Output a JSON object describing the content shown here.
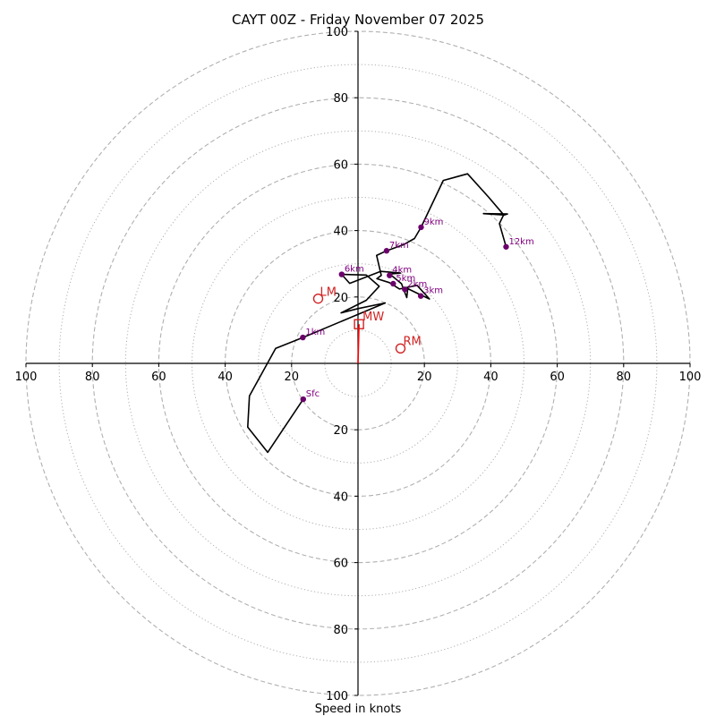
{
  "chart_data": {
    "type": "hodograph",
    "title": "CAYT 00Z - Friday November 07 2025",
    "xlabel": "Speed in knots",
    "units": "knots",
    "max_speed": 100,
    "rings_dashed": [
      20,
      40,
      60,
      80,
      100
    ],
    "rings_dotted": [
      10,
      30,
      50,
      70,
      90
    ],
    "axis_ticks": {
      "x": [
        {
          "value": -100,
          "label": "100"
        },
        {
          "value": -80,
          "label": "80"
        },
        {
          "value": -60,
          "label": "60"
        },
        {
          "value": -40,
          "label": "40"
        },
        {
          "value": -20,
          "label": "20"
        },
        {
          "value": 20,
          "label": "20"
        },
        {
          "value": 40,
          "label": "40"
        },
        {
          "value": 60,
          "label": "60"
        },
        {
          "value": 80,
          "label": "80"
        },
        {
          "value": 100,
          "label": "100"
        }
      ],
      "y": [
        {
          "value": 100,
          "label": "100"
        },
        {
          "value": 80,
          "label": "80"
        },
        {
          "value": 60,
          "label": "60"
        },
        {
          "value": 40,
          "label": "40"
        },
        {
          "value": 20,
          "label": "20"
        },
        {
          "value": -20,
          "label": "20"
        },
        {
          "value": -40,
          "label": "40"
        },
        {
          "value": -60,
          "label": "60"
        },
        {
          "value": -80,
          "label": "80"
        },
        {
          "value": -100,
          "label": "100"
        }
      ]
    },
    "profile": [
      [
        -16.5,
        -10.8
      ],
      [
        -27.2,
        -26.8
      ],
      [
        -33.2,
        -19.2
      ],
      [
        -32.7,
        -9.8
      ],
      [
        -24.8,
        4.5
      ],
      [
        -16.6,
        7.8
      ],
      [
        8.2,
        18.2
      ],
      [
        0,
        16.5
      ],
      [
        -5.1,
        15.2
      ],
      [
        2.5,
        19.0
      ],
      [
        6.4,
        23.2
      ],
      [
        2.5,
        26.6
      ],
      [
        -4.9,
        26.8
      ],
      [
        -2.5,
        24.1
      ],
      [
        6.8,
        27.7
      ],
      [
        12.8,
        27.2
      ],
      [
        9.6,
        26.9
      ],
      [
        13.1,
        24.0
      ],
      [
        14.7,
        19.8
      ],
      [
        15.0,
        22.5
      ],
      [
        18.1,
        21.0
      ],
      [
        21.5,
        19.4
      ],
      [
        17.8,
        23.5
      ],
      [
        12.5,
        22.4
      ],
      [
        9.5,
        24.3
      ],
      [
        5.7,
        25.5
      ],
      [
        7.0,
        26.5
      ],
      [
        5.6,
        32.5
      ],
      [
        8.6,
        33.9
      ],
      [
        13.8,
        35.8
      ],
      [
        17.0,
        37.6
      ],
      [
        19.0,
        41.0
      ],
      [
        25.7,
        55.1
      ],
      [
        33.0,
        57.1
      ],
      [
        39.3,
        50.1
      ],
      [
        43.9,
        44.7
      ],
      [
        37.8,
        45.1
      ],
      [
        45.0,
        45.0
      ],
      [
        43.8,
        44.6
      ],
      [
        42.6,
        42.1
      ],
      [
        44.6,
        35.1
      ]
    ],
    "height_markers": [
      {
        "label": "Sfc",
        "u": -16.5,
        "v": -10.8
      },
      {
        "label": "1km",
        "u": -16.6,
        "v": 7.8
      },
      {
        "label": "3km",
        "u": 18.9,
        "v": 20.3
      },
      {
        "label": "2km",
        "u": 14.1,
        "v": 22.3
      },
      {
        "label": "5km",
        "u": 10.6,
        "v": 24.0
      },
      {
        "label": "4km",
        "u": 9.5,
        "v": 26.5
      },
      {
        "label": "6km",
        "u": -4.9,
        "v": 26.8
      },
      {
        "label": "7km",
        "u": 8.6,
        "v": 33.9
      },
      {
        "label": "9km",
        "u": 19.0,
        "v": 41.0
      },
      {
        "label": "12km",
        "u": 44.6,
        "v": 35.1
      }
    ],
    "storm_motion": {
      "LM": {
        "label": "LM",
        "u": -12.0,
        "v": 19.5
      },
      "RM": {
        "label": "RM",
        "u": 12.8,
        "v": 4.5
      },
      "MW": {
        "label": "MW",
        "u": 0.3,
        "v": 11.8
      }
    },
    "mean_wind_vector": {
      "u_start": 0,
      "v_start": 0,
      "u_end": 0.3,
      "v_end": 11.8
    },
    "colors": {
      "profile": "#000000",
      "markers": "#6b006b",
      "marker_text": "#800080",
      "storm": "#d22222",
      "grid": "#b0b0b0"
    }
  }
}
